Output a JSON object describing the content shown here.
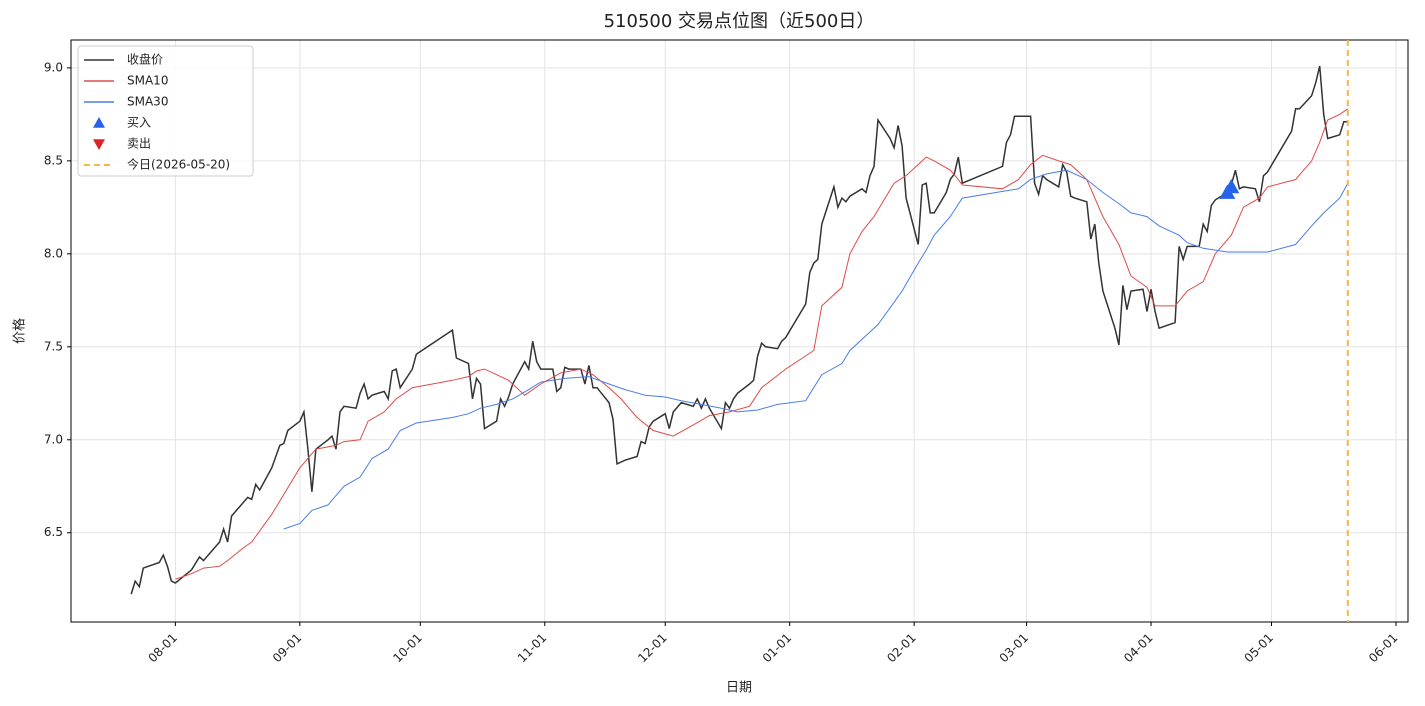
{
  "chart_data": {
    "type": "line",
    "title": "510500 交易点位图（近500日）",
    "xlabel": "日期",
    "ylabel": "价格",
    "xlim": [
      "07-06",
      "06-04"
    ],
    "xticks": [
      "08-01",
      "09-01",
      "10-01",
      "11-01",
      "12-01",
      "01-01",
      "02-01",
      "03-01",
      "04-01",
      "05-01",
      "06-01"
    ],
    "ylim": [
      6.02,
      9.15
    ],
    "yticks": [
      6.5,
      {
        "value": 7,
        "label": "7.0"
      },
      7.5,
      {
        "value": 8,
        "label": "8.0"
      },
      8.5,
      {
        "value": 9,
        "label": "9.0"
      }
    ],
    "grid": true,
    "legend": "upper left",
    "series": [
      {
        "name": "收盘价",
        "kind": "line",
        "color": "#333333",
        "x": [
          "07-21",
          "07-22",
          "07-23",
          "07-24",
          "07-28",
          "07-29",
          "07-30",
          "07-31",
          "08-01",
          "08-05",
          "08-07",
          "08-08",
          "08-12",
          "08-13",
          "08-14",
          "08-15",
          "08-19",
          "08-20",
          "08-21",
          "08-22",
          "08-25",
          "08-27",
          "08-28",
          "08-29",
          "09-01",
          "09-02",
          "09-03",
          "09-04",
          "09-05",
          "09-08",
          "09-09",
          "09-10",
          "09-11",
          "09-12",
          "09-15",
          "09-16",
          "09-17",
          "09-18",
          "09-19",
          "09-22",
          "09-23",
          "09-24",
          "09-25",
          "09-26",
          "09-29",
          "09-30",
          "10-09",
          "10-10",
          "10-13",
          "10-14",
          "10-15",
          "10-16",
          "10-17",
          "10-20",
          "10-21",
          "10-22",
          "10-23",
          "10-24",
          "10-27",
          "10-28",
          "10-29",
          "10-30",
          "10-31",
          "11-03",
          "11-04",
          "11-05",
          "11-06",
          "11-07",
          "11-10",
          "11-11",
          "11-12",
          "11-13",
          "11-14",
          "11-17",
          "11-18",
          "11-19",
          "11-21",
          "11-24",
          "11-25",
          "11-26",
          "11-27",
          "11-28",
          "12-01",
          "12-02",
          "12-03",
          "12-05",
          "12-08",
          "12-09",
          "12-10",
          "12-11",
          "12-12",
          "12-15",
          "12-16",
          "12-17",
          "12-18",
          "12-19",
          "12-22",
          "12-23",
          "12-24",
          "12-25",
          "12-26",
          "12-29",
          "12-30",
          "12-31",
          "01-05",
          "01-06",
          "01-07",
          "01-08",
          "01-09",
          "01-12",
          "01-13",
          "01-14",
          "01-15",
          "01-16",
          "01-19",
          "01-20",
          "01-21",
          "01-22",
          "01-23",
          "01-26",
          "01-27",
          "01-28",
          "01-29",
          "01-30",
          "02-02",
          "02-03",
          "02-04",
          "02-05",
          "02-06",
          "02-09",
          "02-10",
          "02-11",
          "02-12",
          "02-13",
          "02-23",
          "02-24",
          "02-25",
          "02-26",
          "02-27",
          "03-02",
          "03-03",
          "03-04",
          "03-05",
          "03-06",
          "03-09",
          "03-10",
          "03-11",
          "03-12",
          "03-13",
          "03-16",
          "03-17",
          "03-18",
          "03-19",
          "03-20",
          "03-23",
          "03-24",
          "03-25",
          "03-26",
          "03-27",
          "03-30",
          "03-31",
          "04-01",
          "04-02",
          "04-03",
          "04-07",
          "04-08",
          "04-09",
          "04-10",
          "04-13",
          "04-14",
          "04-15",
          "04-16",
          "04-17",
          "04-20",
          "04-21",
          "04-22",
          "04-23",
          "04-24",
          "04-27",
          "04-28",
          "04-29",
          "04-30",
          "05-06",
          "05-07",
          "05-08",
          "05-11",
          "05-12",
          "05-13",
          "05-14",
          "05-15",
          "05-18",
          "05-19",
          "05-20"
        ],
        "values": [
          6.17,
          6.24,
          6.21,
          6.31,
          6.34,
          6.38,
          6.32,
          6.24,
          6.23,
          6.3,
          6.37,
          6.35,
          6.45,
          6.52,
          6.45,
          6.59,
          6.69,
          6.68,
          6.76,
          6.73,
          6.85,
          6.97,
          6.98,
          7.05,
          7.1,
          7.15,
          6.95,
          6.72,
          6.95,
          7.0,
          7.02,
          6.95,
          7.15,
          7.18,
          7.17,
          7.25,
          7.3,
          7.22,
          7.24,
          7.26,
          7.22,
          7.37,
          7.38,
          7.28,
          7.38,
          7.46,
          7.59,
          7.44,
          7.41,
          7.22,
          7.33,
          7.3,
          7.06,
          7.1,
          7.22,
          7.18,
          7.23,
          7.3,
          7.42,
          7.38,
          7.53,
          7.42,
          7.38,
          7.38,
          7.26,
          7.28,
          7.39,
          7.38,
          7.38,
          7.3,
          7.4,
          7.28,
          7.28,
          7.2,
          7.11,
          6.87,
          6.89,
          6.91,
          6.99,
          6.98,
          7.07,
          7.1,
          7.14,
          7.06,
          7.15,
          7.2,
          7.18,
          7.22,
          7.17,
          7.22,
          7.17,
          7.06,
          7.2,
          7.17,
          7.22,
          7.25,
          7.3,
          7.32,
          7.45,
          7.52,
          7.5,
          7.49,
          7.53,
          7.55,
          7.73,
          7.9,
          7.95,
          7.97,
          8.16,
          8.36,
          8.25,
          8.3,
          8.28,
          8.31,
          8.35,
          8.33,
          8.42,
          8.47,
          8.72,
          8.62,
          8.57,
          8.69,
          8.58,
          8.3,
          8.05,
          8.37,
          8.38,
          8.22,
          8.22,
          8.33,
          8.4,
          8.43,
          8.52,
          8.38,
          8.47,
          8.6,
          8.64,
          8.74,
          8.74,
          8.74,
          8.38,
          8.32,
          8.42,
          8.4,
          8.36,
          8.48,
          8.44,
          8.31,
          8.3,
          8.28,
          8.08,
          8.16,
          7.95,
          7.8,
          7.6,
          7.51,
          7.83,
          7.7,
          7.8,
          7.81,
          7.69,
          7.81,
          7.69,
          7.6,
          7.63,
          8.04,
          7.97,
          8.04,
          8.04,
          8.16,
          8.12,
          8.26,
          8.29,
          8.33,
          8.37,
          8.45,
          8.35,
          8.36,
          8.35,
          8.28,
          8.42,
          8.44,
          8.66,
          8.78,
          8.78,
          8.85,
          8.92,
          9.01,
          8.75,
          8.62,
          8.64,
          8.71,
          8.71
        ]
      },
      {
        "name": "SMA10",
        "kind": "line",
        "color": "#e04a4a",
        "x": [
          "08-01",
          "08-05",
          "08-08",
          "08-12",
          "08-14",
          "08-18",
          "08-20",
          "08-25",
          "08-27",
          "09-01",
          "09-03",
          "09-05",
          "09-10",
          "09-12",
          "09-16",
          "09-18",
          "09-22",
          "09-25",
          "09-29",
          "10-09",
          "10-13",
          "10-15",
          "10-17",
          "10-20",
          "10-23",
          "10-27",
          "10-31",
          "11-05",
          "11-10",
          "11-13",
          "11-17",
          "11-20",
          "11-24",
          "11-28",
          "12-03",
          "12-08",
          "12-12",
          "12-17",
          "12-22",
          "12-25",
          "12-31",
          "01-07",
          "01-09",
          "01-14",
          "01-16",
          "01-19",
          "01-22",
          "01-27",
          "01-30",
          "02-04",
          "02-06",
          "02-10",
          "02-12",
          "02-13",
          "02-23",
          "02-27",
          "03-02",
          "03-05",
          "03-09",
          "03-12",
          "03-16",
          "03-18",
          "03-20",
          "03-24",
          "03-27",
          "03-31",
          "04-02",
          "04-07",
          "04-10",
          "04-14",
          "04-17",
          "04-21",
          "04-24",
          "04-28",
          "04-30",
          "05-07",
          "05-11",
          "05-13",
          "05-15",
          "05-18",
          "05-20"
        ],
        "values": [
          6.25,
          6.28,
          6.31,
          6.32,
          6.35,
          6.42,
          6.45,
          6.6,
          6.67,
          6.85,
          6.9,
          6.95,
          6.97,
          6.99,
          7.0,
          7.1,
          7.15,
          7.22,
          7.28,
          7.32,
          7.34,
          7.37,
          7.38,
          7.35,
          7.32,
          7.24,
          7.3,
          7.36,
          7.38,
          7.35,
          7.28,
          7.22,
          7.12,
          7.05,
          7.02,
          7.08,
          7.13,
          7.15,
          7.18,
          7.28,
          7.38,
          7.48,
          7.72,
          7.82,
          8.0,
          8.12,
          8.2,
          8.38,
          8.42,
          8.52,
          8.5,
          8.45,
          8.4,
          8.37,
          8.35,
          8.4,
          8.48,
          8.53,
          8.5,
          8.48,
          8.4,
          8.3,
          8.2,
          8.05,
          7.88,
          7.82,
          7.72,
          7.72,
          7.8,
          7.85,
          8.0,
          8.1,
          8.25,
          8.3,
          8.36,
          8.4,
          8.5,
          8.6,
          8.72,
          8.75,
          8.78
        ]
      },
      {
        "name": "SMA30",
        "kind": "line",
        "color": "#4a7de8",
        "x": [
          "08-28",
          "09-01",
          "09-04",
          "09-08",
          "09-10",
          "09-12",
          "09-16",
          "09-19",
          "09-23",
          "09-26",
          "09-30",
          "10-09",
          "10-13",
          "10-16",
          "10-20",
          "10-24",
          "10-28",
          "10-31",
          "11-06",
          "11-12",
          "11-17",
          "11-21",
          "11-26",
          "12-01",
          "12-05",
          "12-10",
          "12-15",
          "12-19",
          "12-24",
          "12-29",
          "01-05",
          "01-09",
          "01-14",
          "01-16",
          "01-20",
          "01-23",
          "01-26",
          "01-29",
          "02-02",
          "02-04",
          "02-06",
          "02-10",
          "02-13",
          "02-27",
          "03-02",
          "03-06",
          "03-11",
          "03-16",
          "03-20",
          "03-24",
          "03-27",
          "03-31",
          "04-03",
          "04-08",
          "04-10",
          "04-14",
          "04-20",
          "04-24",
          "04-30",
          "05-07",
          "05-11",
          "05-14",
          "05-18",
          "05-20"
        ],
        "values": [
          6.52,
          6.55,
          6.62,
          6.65,
          6.7,
          6.75,
          6.8,
          6.9,
          6.95,
          7.05,
          7.09,
          7.12,
          7.14,
          7.17,
          7.19,
          7.22,
          7.27,
          7.31,
          7.33,
          7.34,
          7.3,
          7.27,
          7.24,
          7.23,
          7.21,
          7.19,
          7.17,
          7.15,
          7.16,
          7.19,
          7.21,
          7.35,
          7.41,
          7.48,
          7.56,
          7.62,
          7.71,
          7.8,
          7.95,
          8.02,
          8.1,
          8.2,
          8.3,
          8.35,
          8.4,
          8.43,
          8.45,
          8.4,
          8.33,
          8.27,
          8.22,
          8.2,
          8.15,
          8.1,
          8.06,
          8.03,
          8.01,
          8.01,
          8.01,
          8.05,
          8.15,
          8.22,
          8.3,
          8.38
        ]
      },
      {
        "name": "买入",
        "kind": "marker-up",
        "color": "#2563eb",
        "x": [
          "04-20",
          "04-21"
        ],
        "values": [
          8.33,
          8.36
        ]
      },
      {
        "name": "卖出",
        "kind": "marker-down",
        "color": "#dc2626",
        "x": [],
        "values": []
      },
      {
        "name": "今日(2026-05-20)",
        "kind": "vline",
        "color": "#f0b94a",
        "x": [
          "05-20"
        ]
      }
    ]
  }
}
